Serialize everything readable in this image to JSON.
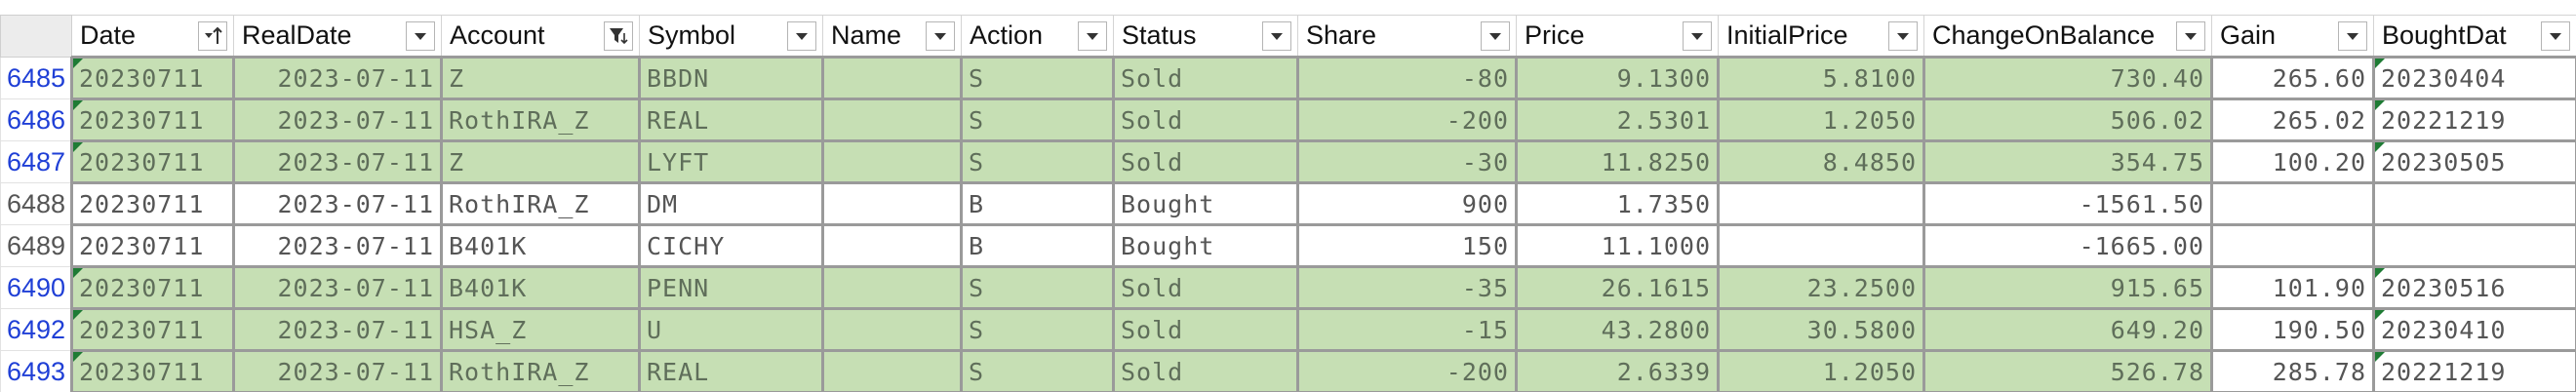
{
  "colors": {
    "sold_fill": "#c6dfb4",
    "row_number": "#1f3fd6",
    "error_flag": "#1e7b34"
  },
  "columns": [
    {
      "label": "Date",
      "filter_icon": "sort-ascending-icon"
    },
    {
      "label": "RealDate",
      "filter_icon": "dropdown-arrow-icon"
    },
    {
      "label": "Account",
      "filter_icon": "filter-active-icon"
    },
    {
      "label": "Symbol",
      "filter_icon": "dropdown-arrow-icon"
    },
    {
      "label": "Name",
      "filter_icon": "dropdown-arrow-icon"
    },
    {
      "label": "Action",
      "filter_icon": "dropdown-arrow-icon"
    },
    {
      "label": "Status",
      "filter_icon": "dropdown-arrow-icon"
    },
    {
      "label": "Share",
      "filter_icon": "dropdown-arrow-icon"
    },
    {
      "label": "Price",
      "filter_icon": "dropdown-arrow-icon"
    },
    {
      "label": "InitialPrice",
      "filter_icon": "dropdown-arrow-icon"
    },
    {
      "label": "ChangeOnBalance",
      "filter_icon": "dropdown-arrow-icon"
    },
    {
      "label": "Gain",
      "filter_icon": "dropdown-arrow-icon"
    },
    {
      "label": "BoughtDat",
      "filter_icon": "dropdown-arrow-icon"
    }
  ],
  "rows": [
    {
      "row": "6485",
      "status_kind": "sold",
      "date": "20230711",
      "real_date": "2023-07-11",
      "account": "Z",
      "symbol": "BBDN",
      "name": "",
      "action": "S",
      "status": "Sold",
      "share": "-80",
      "price": "9.1300",
      "initial_price": "5.8100",
      "change_on_balance": "730.40",
      "gain": "265.60",
      "bought_date": "20230404"
    },
    {
      "row": "6486",
      "status_kind": "sold",
      "date": "20230711",
      "real_date": "2023-07-11",
      "account": "RothIRA_Z",
      "symbol": "REAL",
      "name": "",
      "action": "S",
      "status": "Sold",
      "share": "-200",
      "price": "2.5301",
      "initial_price": "1.2050",
      "change_on_balance": "506.02",
      "gain": "265.02",
      "bought_date": "20221219"
    },
    {
      "row": "6487",
      "status_kind": "sold",
      "date": "20230711",
      "real_date": "2023-07-11",
      "account": "Z",
      "symbol": "LYFT",
      "name": "",
      "action": "S",
      "status": "Sold",
      "share": "-30",
      "price": "11.8250",
      "initial_price": "8.4850",
      "change_on_balance": "354.75",
      "gain": "100.20",
      "bought_date": "20230505"
    },
    {
      "row": "6488",
      "status_kind": "bought",
      "date": "20230711",
      "real_date": "2023-07-11",
      "account": "RothIRA_Z",
      "symbol": "DM",
      "name": "",
      "action": "B",
      "status": "Bought",
      "share": "900",
      "price": "1.7350",
      "initial_price": "",
      "change_on_balance": "-1561.50",
      "gain": "",
      "bought_date": ""
    },
    {
      "row": "6489",
      "status_kind": "bought",
      "date": "20230711",
      "real_date": "2023-07-11",
      "account": "B401K",
      "symbol": "CICHY",
      "name": "",
      "action": "B",
      "status": "Bought",
      "share": "150",
      "price": "11.1000",
      "initial_price": "",
      "change_on_balance": "-1665.00",
      "gain": "",
      "bought_date": ""
    },
    {
      "row": "6490",
      "status_kind": "sold",
      "date": "20230711",
      "real_date": "2023-07-11",
      "account": "B401K",
      "symbol": "PENN",
      "name": "",
      "action": "S",
      "status": "Sold",
      "share": "-35",
      "price": "26.1615",
      "initial_price": "23.2500",
      "change_on_balance": "915.65",
      "gain": "101.90",
      "bought_date": "20230516"
    },
    {
      "row": "6492",
      "status_kind": "sold",
      "date": "20230711",
      "real_date": "2023-07-11",
      "account": "HSA_Z",
      "symbol": "U",
      "name": "",
      "action": "S",
      "status": "Sold",
      "share": "-15",
      "price": "43.2800",
      "initial_price": "30.5800",
      "change_on_balance": "649.20",
      "gain": "190.50",
      "bought_date": "20230410"
    },
    {
      "row": "6493",
      "status_kind": "sold",
      "date": "20230711",
      "real_date": "2023-07-11",
      "account": "RothIRA_Z",
      "symbol": "REAL",
      "name": "",
      "action": "S",
      "status": "Sold",
      "share": "-200",
      "price": "2.6339",
      "initial_price": "1.2050",
      "change_on_balance": "526.78",
      "gain": "285.78",
      "bought_date": "20221219"
    }
  ]
}
